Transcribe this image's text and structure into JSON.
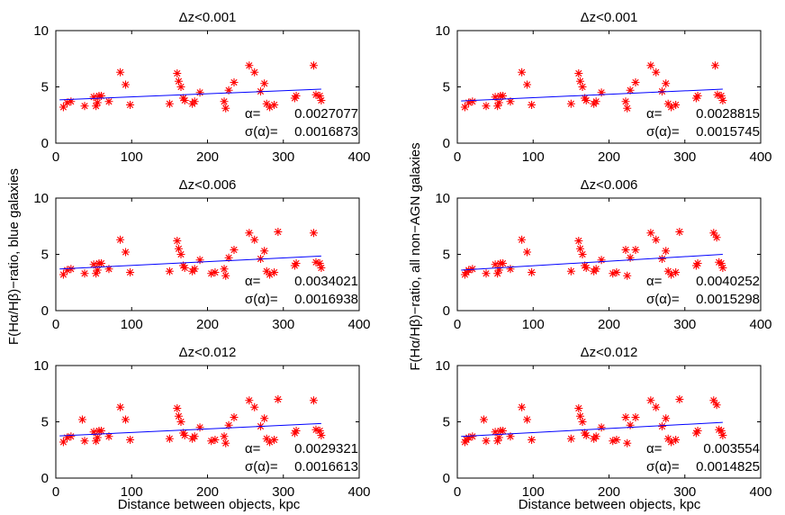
{
  "figure": {
    "xlabel": "Distance between objects, kpc",
    "ylabel_left": "F(Hα/Hβ)−ratio, blue galaxies",
    "ylabel_right": "F(Hα/Hβ)−ratio, all non−AGN galaxies",
    "alpha_label": "α=",
    "sigma_label": "σ(α)=",
    "colors": {
      "marker": "#ff0000",
      "fit": "#0000ff",
      "axes": "#000000"
    }
  },
  "chart_data": [
    {
      "type": "scatter",
      "title": "Δz<0.001",
      "column": "blue",
      "row": 1,
      "xlim": [
        0,
        400
      ],
      "ylim": [
        0,
        10
      ],
      "xticks": [
        0,
        100,
        200,
        300,
        400
      ],
      "yticks": [
        0,
        5,
        10
      ],
      "alpha": "0.0027077",
      "sigma_alpha": "0.0016873",
      "fit": {
        "x": [
          5,
          350
        ],
        "y": [
          3.85,
          4.8
        ]
      },
      "points": [
        [
          10,
          3.2
        ],
        [
          15,
          3.6
        ],
        [
          20,
          3.7
        ],
        [
          38,
          3.3
        ],
        [
          50,
          4.1
        ],
        [
          53,
          3.3
        ],
        [
          55,
          3.6
        ],
        [
          57,
          4.2
        ],
        [
          60,
          4.2
        ],
        [
          70,
          3.7
        ],
        [
          85,
          6.3
        ],
        [
          92,
          5.2
        ],
        [
          98,
          3.4
        ],
        [
          150,
          3.5
        ],
        [
          160,
          6.2
        ],
        [
          162,
          5.5
        ],
        [
          165,
          5.0
        ],
        [
          168,
          4.0
        ],
        [
          170,
          3.8
        ],
        [
          180,
          3.5
        ],
        [
          183,
          3.7
        ],
        [
          190,
          4.5
        ],
        [
          222,
          3.7
        ],
        [
          224,
          3.1
        ],
        [
          228,
          4.7
        ],
        [
          235,
          5.4
        ],
        [
          255,
          6.9
        ],
        [
          262,
          6.3
        ],
        [
          270,
          4.6
        ],
        [
          275,
          5.3
        ],
        [
          278,
          3.5
        ],
        [
          282,
          3.2
        ],
        [
          288,
          3.4
        ],
        [
          315,
          4.0
        ],
        [
          317,
          4.2
        ],
        [
          340,
          6.9
        ],
        [
          343,
          4.3
        ],
        [
          348,
          4.2
        ],
        [
          350,
          3.8
        ]
      ]
    },
    {
      "type": "scatter",
      "title": "Δz<0.001",
      "column": "all",
      "row": 1,
      "xlim": [
        0,
        400
      ],
      "ylim": [
        0,
        10
      ],
      "xticks": [
        0,
        100,
        200,
        300,
        400
      ],
      "yticks": [
        0,
        5,
        10
      ],
      "alpha": "0.0028815",
      "sigma_alpha": "0.0015745",
      "fit": {
        "x": [
          5,
          350
        ],
        "y": [
          3.75,
          4.8
        ]
      },
      "points": [
        [
          10,
          3.2
        ],
        [
          15,
          3.6
        ],
        [
          20,
          3.7
        ],
        [
          38,
          3.3
        ],
        [
          50,
          4.1
        ],
        [
          53,
          3.3
        ],
        [
          55,
          3.6
        ],
        [
          57,
          4.2
        ],
        [
          60,
          4.2
        ],
        [
          70,
          3.7
        ],
        [
          85,
          6.3
        ],
        [
          92,
          5.2
        ],
        [
          98,
          3.4
        ],
        [
          150,
          3.5
        ],
        [
          160,
          6.2
        ],
        [
          162,
          5.5
        ],
        [
          165,
          5.0
        ],
        [
          168,
          4.0
        ],
        [
          170,
          3.8
        ],
        [
          180,
          3.5
        ],
        [
          183,
          3.7
        ],
        [
          190,
          4.5
        ],
        [
          222,
          3.7
        ],
        [
          224,
          3.1
        ],
        [
          228,
          4.7
        ],
        [
          235,
          5.4
        ],
        [
          255,
          6.9
        ],
        [
          262,
          6.3
        ],
        [
          270,
          4.6
        ],
        [
          275,
          5.3
        ],
        [
          278,
          3.5
        ],
        [
          282,
          3.2
        ],
        [
          288,
          3.4
        ],
        [
          315,
          4.0
        ],
        [
          317,
          4.2
        ],
        [
          340,
          6.9
        ],
        [
          343,
          4.3
        ],
        [
          348,
          4.2
        ],
        [
          350,
          3.8
        ]
      ]
    },
    {
      "type": "scatter",
      "title": "Δz<0.006",
      "column": "blue",
      "row": 2,
      "xlim": [
        0,
        400
      ],
      "ylim": [
        0,
        10
      ],
      "xticks": [
        0,
        100,
        200,
        300,
        400
      ],
      "yticks": [
        0,
        5,
        10
      ],
      "alpha": "0.0034021",
      "sigma_alpha": "0.0016938",
      "fit": {
        "x": [
          5,
          350
        ],
        "y": [
          3.7,
          4.85
        ]
      },
      "points": [
        [
          10,
          3.2
        ],
        [
          15,
          3.6
        ],
        [
          20,
          3.7
        ],
        [
          38,
          3.3
        ],
        [
          50,
          4.1
        ],
        [
          53,
          3.3
        ],
        [
          55,
          3.6
        ],
        [
          57,
          4.2
        ],
        [
          60,
          4.2
        ],
        [
          70,
          3.7
        ],
        [
          85,
          6.3
        ],
        [
          92,
          5.2
        ],
        [
          98,
          3.4
        ],
        [
          150,
          3.5
        ],
        [
          160,
          6.2
        ],
        [
          162,
          5.5
        ],
        [
          165,
          5.0
        ],
        [
          168,
          4.0
        ],
        [
          170,
          3.8
        ],
        [
          180,
          3.5
        ],
        [
          183,
          3.7
        ],
        [
          190,
          4.5
        ],
        [
          205,
          3.3
        ],
        [
          210,
          3.4
        ],
        [
          222,
          3.7
        ],
        [
          224,
          3.1
        ],
        [
          228,
          4.7
        ],
        [
          235,
          5.4
        ],
        [
          255,
          6.9
        ],
        [
          262,
          6.3
        ],
        [
          270,
          4.6
        ],
        [
          275,
          5.3
        ],
        [
          278,
          3.5
        ],
        [
          282,
          3.2
        ],
        [
          288,
          3.4
        ],
        [
          293,
          7.0
        ],
        [
          315,
          4.0
        ],
        [
          317,
          4.2
        ],
        [
          340,
          6.9
        ],
        [
          343,
          4.3
        ],
        [
          348,
          4.2
        ],
        [
          350,
          3.8
        ]
      ]
    },
    {
      "type": "scatter",
      "title": "Δz<0.006",
      "column": "all",
      "row": 2,
      "xlim": [
        0,
        400
      ],
      "ylim": [
        0,
        10
      ],
      "xticks": [
        0,
        100,
        200,
        300,
        400
      ],
      "yticks": [
        0,
        5,
        10
      ],
      "alpha": "0.0040252",
      "sigma_alpha": "0.0015298",
      "fit": {
        "x": [
          5,
          350
        ],
        "y": [
          3.6,
          5.0
        ]
      },
      "points": [
        [
          10,
          3.2
        ],
        [
          12,
          3.4
        ],
        [
          15,
          3.6
        ],
        [
          20,
          3.7
        ],
        [
          38,
          3.3
        ],
        [
          50,
          4.1
        ],
        [
          53,
          3.3
        ],
        [
          55,
          3.6
        ],
        [
          57,
          4.2
        ],
        [
          60,
          4.2
        ],
        [
          70,
          3.7
        ],
        [
          85,
          6.3
        ],
        [
          92,
          5.2
        ],
        [
          98,
          3.4
        ],
        [
          150,
          3.5
        ],
        [
          160,
          6.2
        ],
        [
          162,
          5.5
        ],
        [
          165,
          5.0
        ],
        [
          168,
          4.0
        ],
        [
          170,
          3.8
        ],
        [
          180,
          3.5
        ],
        [
          183,
          3.7
        ],
        [
          190,
          4.5
        ],
        [
          205,
          3.3
        ],
        [
          210,
          3.4
        ],
        [
          222,
          5.4
        ],
        [
          224,
          3.1
        ],
        [
          228,
          4.7
        ],
        [
          235,
          5.4
        ],
        [
          255,
          6.9
        ],
        [
          262,
          6.3
        ],
        [
          270,
          4.6
        ],
        [
          275,
          5.3
        ],
        [
          278,
          3.5
        ],
        [
          282,
          3.2
        ],
        [
          288,
          3.4
        ],
        [
          293,
          7.0
        ],
        [
          315,
          4.0
        ],
        [
          317,
          4.2
        ],
        [
          338,
          6.9
        ],
        [
          342,
          6.5
        ],
        [
          345,
          4.3
        ],
        [
          348,
          4.2
        ],
        [
          350,
          3.8
        ]
      ]
    },
    {
      "type": "scatter",
      "title": "Δz<0.012",
      "column": "blue",
      "row": 3,
      "xlim": [
        0,
        400
      ],
      "ylim": [
        0,
        10
      ],
      "xticks": [
        0,
        100,
        200,
        300,
        400
      ],
      "yticks": [
        0,
        5,
        10
      ],
      "alpha": "0.0029321",
      "sigma_alpha": "0.0016613",
      "fit": {
        "x": [
          5,
          350
        ],
        "y": [
          3.75,
          4.85
        ]
      },
      "points": [
        [
          10,
          3.2
        ],
        [
          15,
          3.6
        ],
        [
          20,
          3.7
        ],
        [
          35,
          5.2
        ],
        [
          38,
          3.3
        ],
        [
          50,
          4.1
        ],
        [
          53,
          3.3
        ],
        [
          55,
          3.6
        ],
        [
          57,
          4.2
        ],
        [
          60,
          4.2
        ],
        [
          70,
          3.7
        ],
        [
          85,
          6.3
        ],
        [
          92,
          5.2
        ],
        [
          98,
          3.4
        ],
        [
          150,
          3.5
        ],
        [
          160,
          6.2
        ],
        [
          162,
          5.5
        ],
        [
          165,
          5.0
        ],
        [
          168,
          4.0
        ],
        [
          170,
          3.8
        ],
        [
          180,
          3.5
        ],
        [
          183,
          3.7
        ],
        [
          190,
          4.5
        ],
        [
          205,
          3.3
        ],
        [
          210,
          3.4
        ],
        [
          222,
          3.7
        ],
        [
          224,
          3.1
        ],
        [
          228,
          4.7
        ],
        [
          235,
          5.4
        ],
        [
          255,
          6.9
        ],
        [
          262,
          6.3
        ],
        [
          270,
          4.6
        ],
        [
          275,
          5.3
        ],
        [
          278,
          3.5
        ],
        [
          282,
          3.2
        ],
        [
          288,
          3.4
        ],
        [
          293,
          7.0
        ],
        [
          315,
          4.0
        ],
        [
          317,
          4.2
        ],
        [
          340,
          6.9
        ],
        [
          343,
          4.3
        ],
        [
          348,
          4.2
        ],
        [
          350,
          3.8
        ]
      ]
    },
    {
      "type": "scatter",
      "title": "Δz<0.012",
      "column": "all",
      "row": 3,
      "xlim": [
        0,
        400
      ],
      "ylim": [
        0,
        10
      ],
      "xticks": [
        0,
        100,
        200,
        300,
        400
      ],
      "yticks": [
        0,
        5,
        10
      ],
      "alpha": "0.003554",
      "sigma_alpha": "0.0014825",
      "fit": {
        "x": [
          5,
          350
        ],
        "y": [
          3.7,
          4.95
        ]
      },
      "points": [
        [
          10,
          3.2
        ],
        [
          12,
          3.4
        ],
        [
          15,
          3.6
        ],
        [
          20,
          3.7
        ],
        [
          35,
          5.2
        ],
        [
          38,
          3.3
        ],
        [
          50,
          4.1
        ],
        [
          53,
          3.3
        ],
        [
          55,
          3.6
        ],
        [
          57,
          4.2
        ],
        [
          60,
          4.2
        ],
        [
          70,
          3.7
        ],
        [
          85,
          6.3
        ],
        [
          92,
          5.2
        ],
        [
          98,
          3.4
        ],
        [
          150,
          3.5
        ],
        [
          160,
          6.2
        ],
        [
          162,
          5.5
        ],
        [
          165,
          5.0
        ],
        [
          168,
          4.0
        ],
        [
          170,
          3.8
        ],
        [
          180,
          3.5
        ],
        [
          183,
          3.7
        ],
        [
          190,
          4.5
        ],
        [
          205,
          3.3
        ],
        [
          210,
          3.4
        ],
        [
          222,
          5.4
        ],
        [
          224,
          3.1
        ],
        [
          228,
          4.7
        ],
        [
          235,
          5.4
        ],
        [
          255,
          6.9
        ],
        [
          262,
          6.3
        ],
        [
          270,
          4.6
        ],
        [
          275,
          5.3
        ],
        [
          278,
          3.5
        ],
        [
          282,
          3.2
        ],
        [
          288,
          3.4
        ],
        [
          293,
          7.0
        ],
        [
          315,
          4.0
        ],
        [
          317,
          4.2
        ],
        [
          338,
          6.9
        ],
        [
          342,
          6.5
        ],
        [
          345,
          4.3
        ],
        [
          348,
          4.2
        ],
        [
          350,
          3.8
        ]
      ]
    }
  ]
}
